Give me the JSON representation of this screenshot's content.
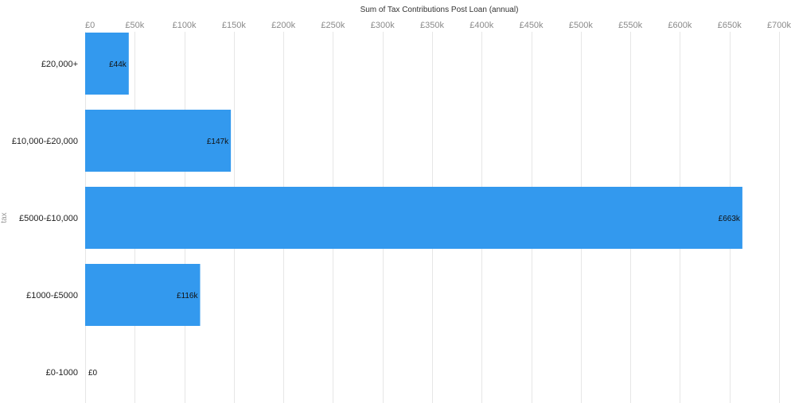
{
  "chart_data": {
    "type": "bar",
    "orientation": "horizontal",
    "title": "Sum of Tax Contributions Post Loan (annual)",
    "xlabel": "",
    "ylabel": "tax",
    "categories": [
      "£20,000+",
      "£10,000-£20,000",
      "£5000-£10,000",
      "£1000-£5000",
      "£0-1000"
    ],
    "values": [
      44,
      147,
      663,
      116,
      0
    ],
    "value_labels": [
      "£44k",
      "£147k",
      "£663k",
      "£116k",
      "£0"
    ],
    "xlim": [
      0,
      700
    ],
    "xticks": [
      0,
      50,
      100,
      150,
      200,
      250,
      300,
      350,
      400,
      450,
      500,
      550,
      600,
      650,
      700
    ],
    "xtick_labels": [
      "£0",
      "£50k",
      "£100k",
      "£150k",
      "£200k",
      "£250k",
      "£300k",
      "£350k",
      "£400k",
      "£450k",
      "£500k",
      "£550k",
      "£600k",
      "£650k",
      "£700k"
    ],
    "grid": true,
    "axis_position": "top",
    "bar_color": "#3399ee"
  }
}
